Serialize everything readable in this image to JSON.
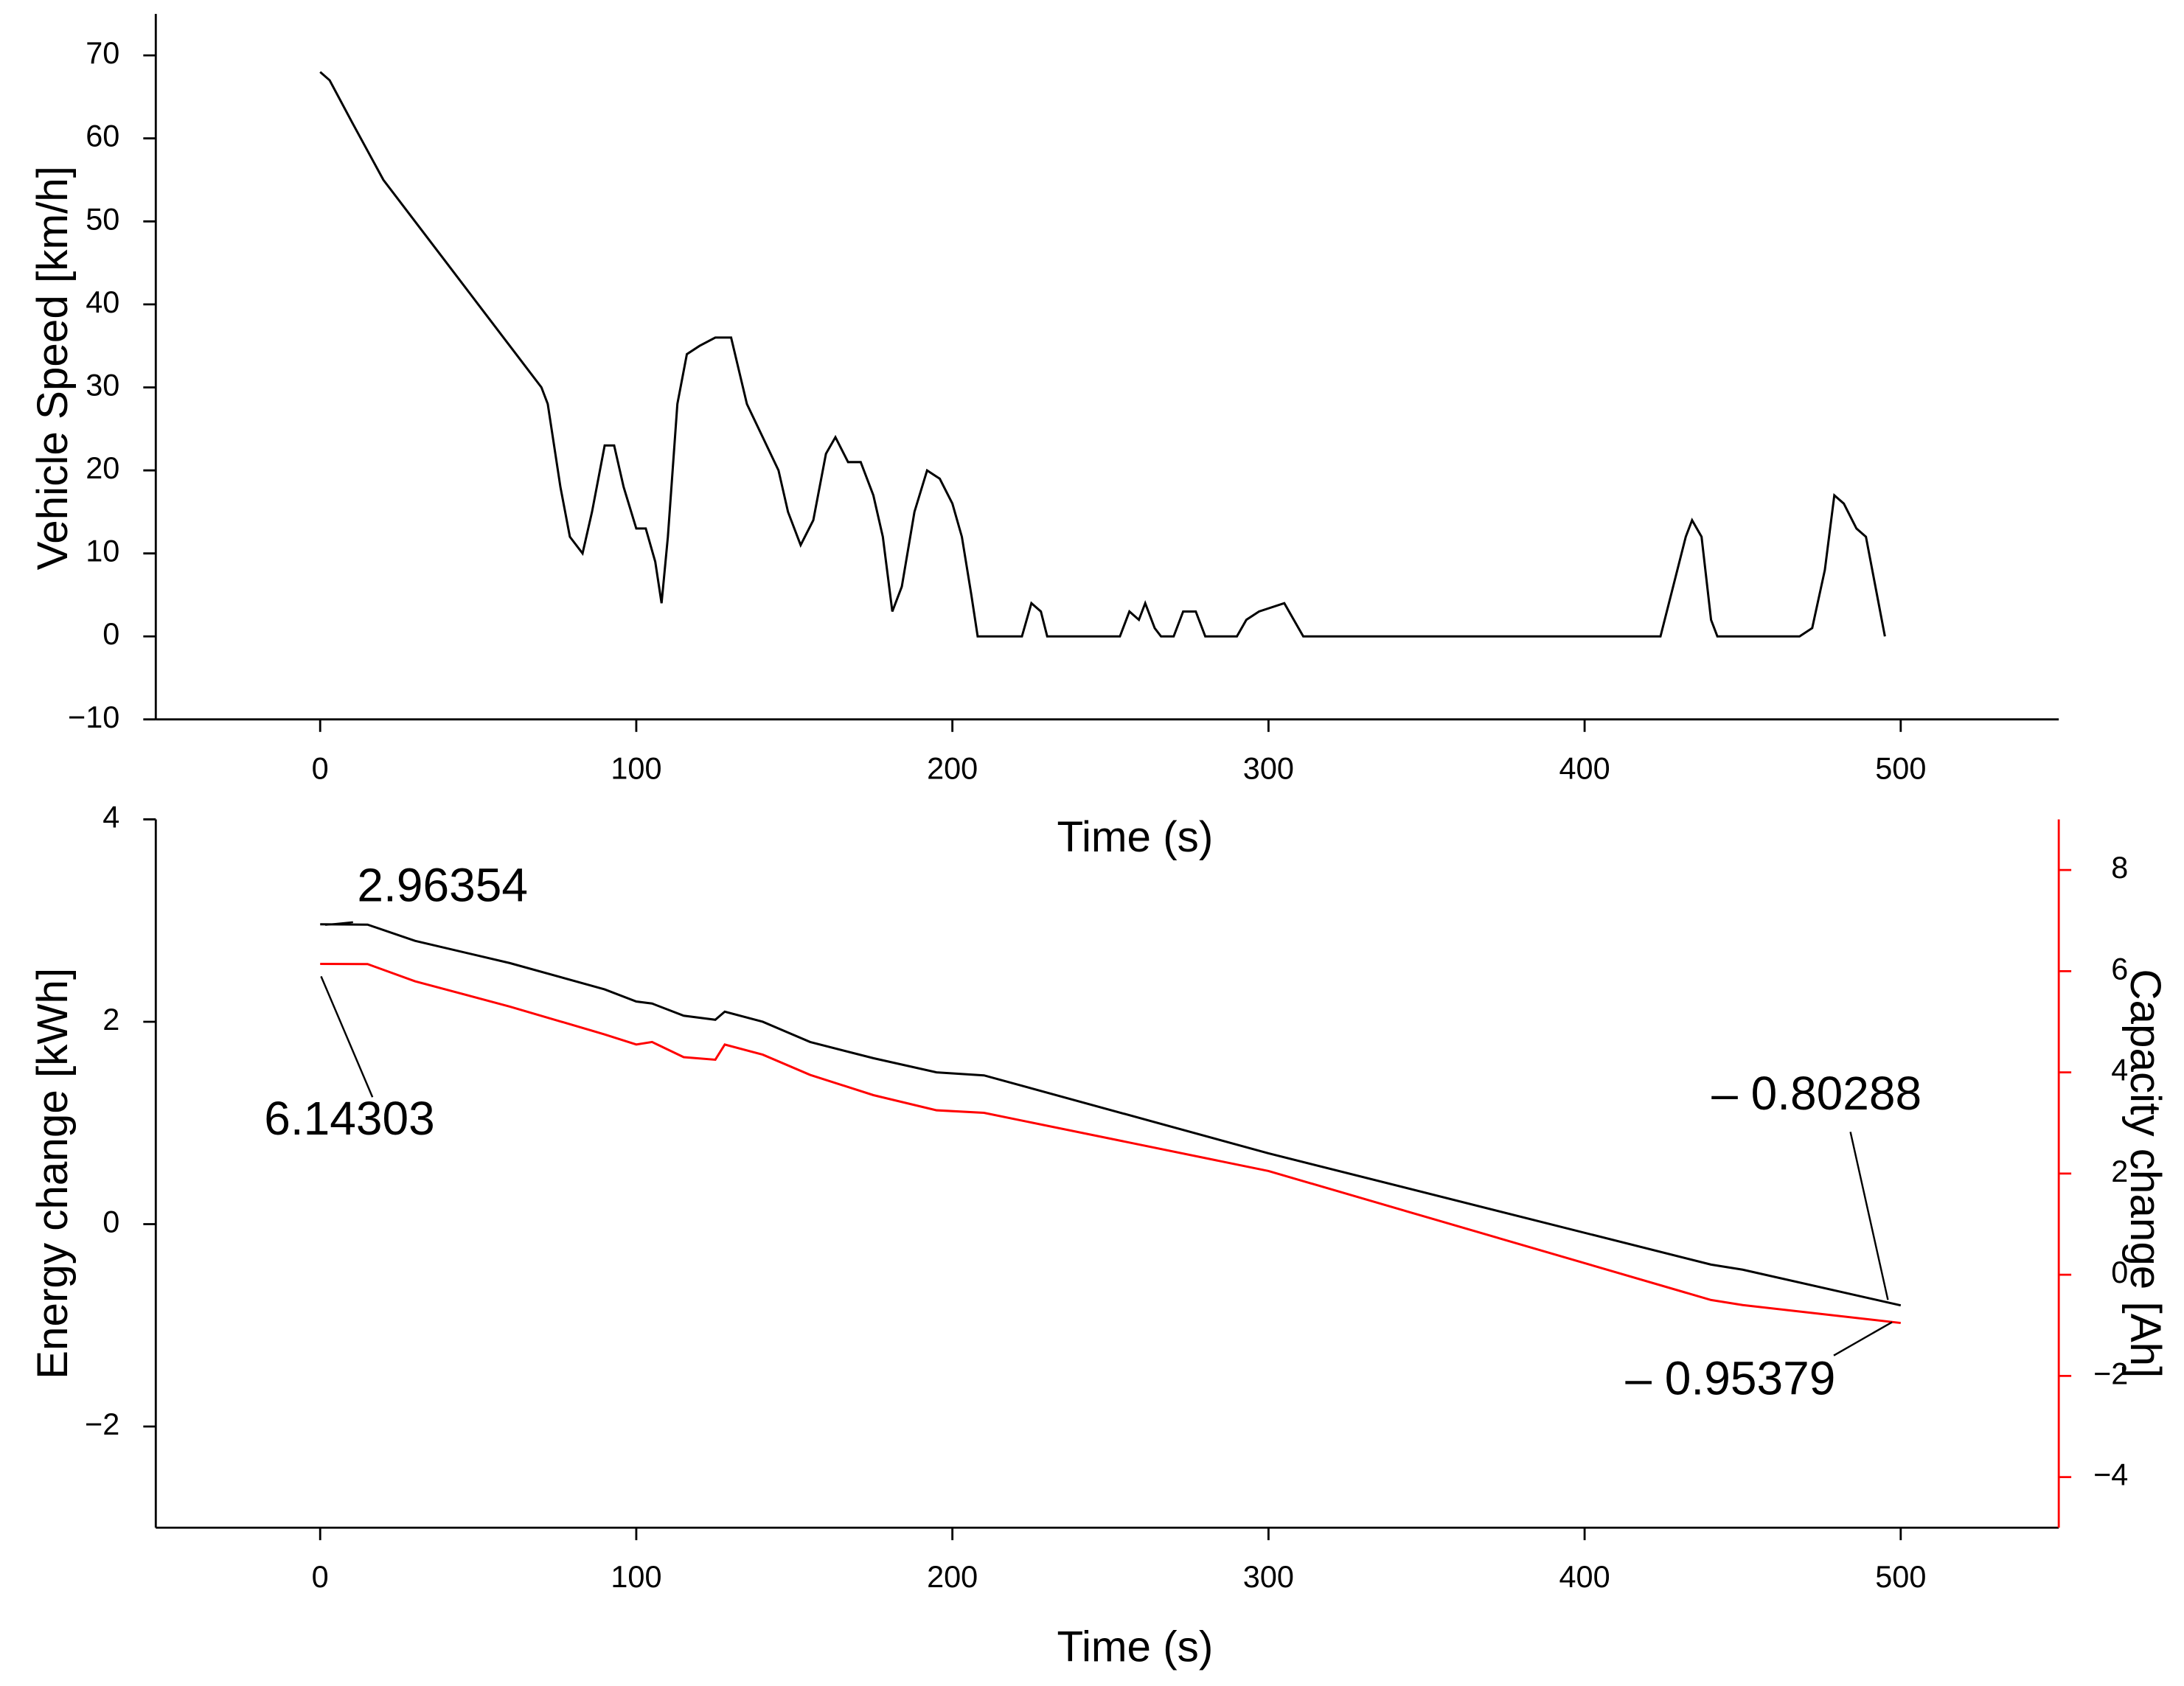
{
  "chart_data": [
    {
      "type": "line",
      "xlabel": "Time (s)",
      "ylabel": "Vehicle Speed [km/h]",
      "x": [
        0,
        3,
        10,
        20,
        30,
        40,
        50,
        60,
        70,
        72,
        76,
        79,
        83,
        86,
        90,
        93,
        96,
        100,
        103,
        106,
        108,
        110,
        113,
        116,
        120,
        125,
        130,
        135,
        140,
        145,
        148,
        152,
        156,
        160,
        163,
        167,
        171,
        175,
        178,
        181,
        184,
        188,
        192,
        196,
        200,
        203,
        206,
        208,
        222,
        225,
        228,
        230,
        253,
        256,
        259,
        261,
        264,
        266,
        270,
        273,
        277,
        280,
        290,
        293,
        297,
        305,
        308,
        311,
        424,
        428,
        432,
        434,
        437,
        440,
        442,
        468,
        472,
        476,
        479,
        482,
        486,
        489,
        493,
        495
      ],
      "series": [
        {
          "name": "Vehicle Speed",
          "color": "#000000",
          "values": [
            68,
            67,
            62,
            55,
            50,
            45,
            40,
            35,
            30,
            28,
            18,
            12,
            10,
            15,
            23,
            23,
            18,
            13,
            13,
            9,
            4,
            12,
            28,
            34,
            35,
            36,
            36,
            28,
            24,
            20,
            15,
            11,
            14,
            22,
            24,
            21,
            21,
            17,
            12,
            3,
            6,
            15,
            20,
            19,
            16,
            12,
            5,
            0,
            0,
            4,
            3,
            0,
            0,
            3,
            2,
            4,
            1,
            0,
            0,
            3,
            3,
            0,
            0,
            2,
            3,
            4,
            2,
            0,
            0,
            6,
            12,
            14,
            12,
            2,
            0,
            0,
            1,
            8,
            17,
            16,
            13,
            12,
            4,
            0
          ]
        }
      ],
      "xlim": [
        -52,
        550
      ],
      "xticks": [
        0,
        100,
        200,
        300,
        400,
        500
      ],
      "ylim": [
        -10,
        75
      ],
      "yticks": [
        {
          "value": -10,
          "label": "−10"
        },
        0,
        10,
        20,
        30,
        40,
        50,
        60,
        70
      ]
    },
    {
      "type": "line",
      "xlabel": "Time (s)",
      "ylabel": "Energy change [kWh]",
      "y2label": "Capacity change [Ah]",
      "x": [
        0,
        15,
        30,
        60,
        90,
        100,
        105,
        115,
        125,
        128,
        140,
        155,
        175,
        195,
        210,
        300,
        440,
        450,
        500
      ],
      "series": [
        {
          "name": "Energy change",
          "color": "#000000",
          "values": [
            2.96354,
            2.96,
            2.8,
            2.58,
            2.32,
            2.2,
            2.18,
            2.06,
            2.02,
            2.1,
            2.0,
            1.8,
            1.64,
            1.5,
            1.47,
            0.7,
            -0.4,
            -0.45,
            -0.80288
          ]
        },
        {
          "name": "Capacity change",
          "color": "#ff0000",
          "axis": "y2",
          "values": [
            6.14303,
            6.14,
            5.8,
            5.3,
            4.75,
            4.55,
            4.6,
            4.3,
            4.25,
            4.55,
            4.35,
            3.95,
            3.55,
            3.25,
            3.2,
            2.05,
            -0.5,
            -0.6,
            -0.95379
          ]
        }
      ],
      "xlim": [
        -52,
        550
      ],
      "xticks": [
        0,
        100,
        200,
        300,
        400,
        500
      ],
      "ylim": [
        -3,
        4
      ],
      "yticks": [
        {
          "value": -2,
          "label": "−2"
        },
        0,
        2,
        4
      ],
      "y2lim": [
        -5,
        9
      ],
      "y2ticks": [
        {
          "value": -4,
          "label": "−4"
        },
        {
          "value": -2,
          "label": "−2"
        },
        0,
        2,
        4,
        6,
        8
      ],
      "y2color": "#ff0000",
      "annotations": [
        {
          "text": "2.96354"
        },
        {
          "text": "6.14303"
        },
        {
          "text": "– 0.80288"
        },
        {
          "text": "– 0.95379"
        }
      ]
    }
  ]
}
